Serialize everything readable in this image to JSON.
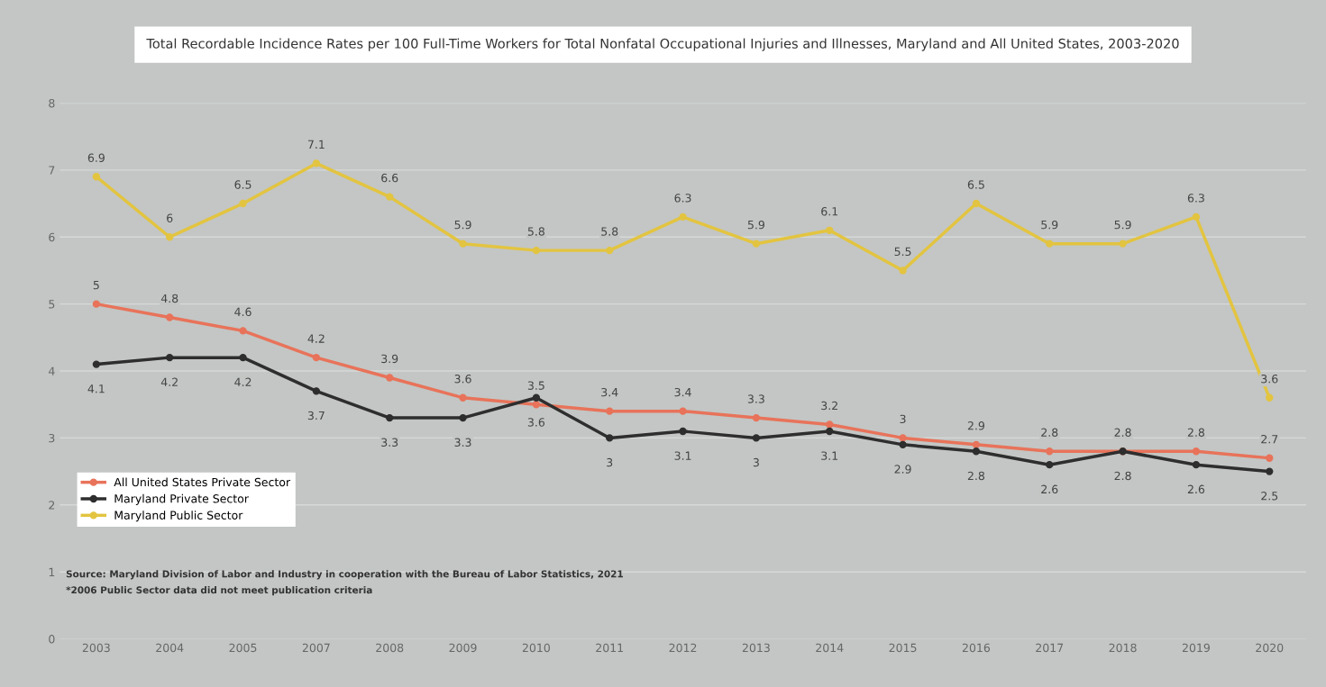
{
  "chart_data": {
    "type": "line",
    "title": "Total Recordable Incidence Rates per 100 Full-Time Workers for Total Nonfatal Occupational Injuries and Illnesses, Maryland and All United States, 2003-2020",
    "categories": [
      "2003",
      "2004",
      "2005",
      "2007",
      "2008",
      "2009",
      "2010",
      "2011",
      "2012",
      "2013",
      "2014",
      "2015",
      "2016",
      "2017",
      "2018",
      "2019",
      "2020"
    ],
    "series": [
      {
        "name": "All United States Private Sector",
        "color": "#e8735a",
        "values": [
          5,
          4.8,
          4.6,
          4.2,
          3.9,
          3.6,
          3.5,
          3.4,
          3.4,
          3.3,
          3.2,
          3,
          2.9,
          2.8,
          2.8,
          2.8,
          2.7
        ]
      },
      {
        "name": "Maryland Private Sector",
        "color": "#2e2e2e",
        "values": [
          4.1,
          4.2,
          4.2,
          3.7,
          3.3,
          3.3,
          3.6,
          3,
          3.1,
          3,
          3.1,
          2.9,
          2.8,
          2.6,
          2.8,
          2.6,
          2.5
        ]
      },
      {
        "name": "Maryland Public Sector",
        "color": "#e3c440",
        "values": [
          6.9,
          6,
          6.5,
          7.1,
          6.6,
          5.9,
          5.8,
          5.8,
          6.3,
          5.9,
          6.1,
          5.5,
          6.5,
          5.9,
          5.9,
          6.3,
          3.6
        ]
      }
    ],
    "ylim": [
      0,
      8
    ],
    "yticks": [
      0,
      1,
      2,
      3,
      4,
      5,
      6,
      7,
      8
    ],
    "grid": "y",
    "legend": "bottom left",
    "marker": "circle",
    "line_style": "solid",
    "data_labels": true,
    "annotations": [
      "Source: Maryland Division of Labor and Industry in cooperation with the Bureau of Labor Statistics, 2021",
      "*2006 Public Sector data did not meet publication criteria"
    ]
  }
}
